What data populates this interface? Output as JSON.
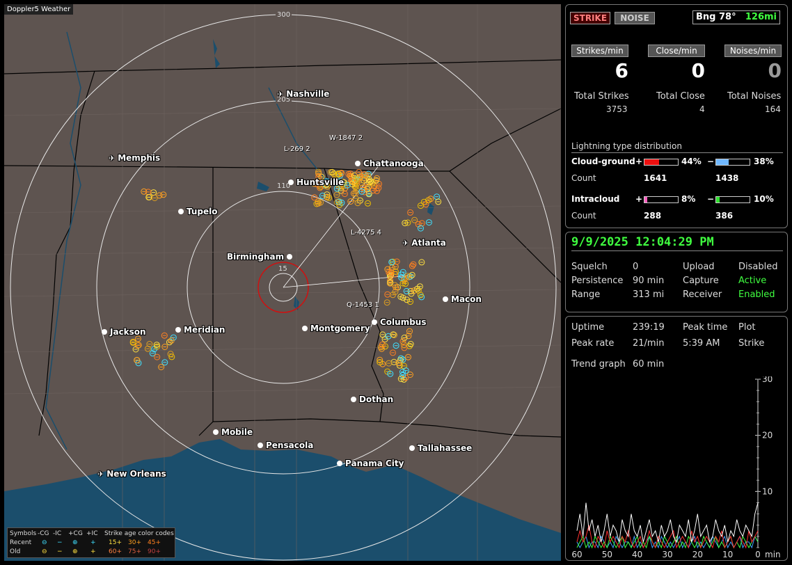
{
  "map": {
    "title": "Doppler5 Weather",
    "ring_labels": [
      "300",
      "205",
      "110",
      "15"
    ],
    "cities": [
      {
        "name": "Nashville",
        "airport": true
      },
      {
        "name": "Memphis",
        "airport": true
      },
      {
        "name": "Chattanooga",
        "airport": false
      },
      {
        "name": "Huntsville",
        "airport": false
      },
      {
        "name": "Tupelo",
        "airport": false
      },
      {
        "name": "Atlanta",
        "airport": true
      },
      {
        "name": "Birmingham",
        "airport": false
      },
      {
        "name": "Macon",
        "airport": false
      },
      {
        "name": "Jackson",
        "airport": false
      },
      {
        "name": "Meridian",
        "airport": false
      },
      {
        "name": "Montgomery",
        "airport": false
      },
      {
        "name": "Columbus",
        "airport": false
      },
      {
        "name": "Dothan",
        "airport": false
      },
      {
        "name": "Mobile",
        "airport": false
      },
      {
        "name": "Pensacola",
        "airport": false
      },
      {
        "name": "Tallahassee",
        "airport": false
      },
      {
        "name": "Panama City",
        "airport": false
      },
      {
        "name": "New Orleans",
        "airport": true
      }
    ],
    "probe_labels": [
      "W-1847  2",
      "L-269  2",
      "L-4275  4",
      "Q-1453  1"
    ]
  },
  "legend": {
    "row1": [
      "Symbols",
      "-CG",
      "-IC",
      "+CG",
      "+IC",
      "Strike age color codes"
    ],
    "row2": [
      "Recent",
      "⊖",
      "−",
      "⊕",
      "+",
      "15+",
      "30+",
      "45+"
    ],
    "row3": [
      "Old",
      "⊖",
      "−",
      "⊕",
      "+",
      "60+",
      "75+",
      "90+"
    ]
  },
  "stats": {
    "strike_btn": "STRIKE",
    "noise_btn": "NOISE",
    "bearing": "Bng 78°",
    "range": "126mi",
    "strikes_min_label": "Strikes/min",
    "close_min_label": "Close/min",
    "noises_min_label": "Noises/min",
    "strikes_min": "6",
    "close_min": "0",
    "noises_min": "0",
    "total_strikes_label": "Total Strikes",
    "total_close_label": "Total Close",
    "total_noises_label": "Total Noises",
    "total_strikes": "3753",
    "total_close": "4",
    "total_noises": "164",
    "dist_title": "Lightning type distribution",
    "cg_label": "Cloud-ground",
    "ic_label": "Intracloud",
    "count_label": "Count",
    "plus": "+",
    "minus": "−",
    "cg_pos_pct": "44%",
    "cg_neg_pct": "38%",
    "cg_pos_count": "1641",
    "cg_neg_count": "1438",
    "ic_pos_pct": "8%",
    "ic_neg_pct": "10%",
    "ic_pos_count": "288",
    "ic_neg_count": "386",
    "cg_pos_frac": 0.44,
    "cg_neg_frac": 0.38,
    "ic_pos_frac": 0.08,
    "ic_neg_frac": 0.1
  },
  "status": {
    "datetime": "9/9/2025 12:04:29 PM",
    "squelch_label": "Squelch",
    "squelch": "0",
    "persistence_label": "Persistence",
    "persistence": "90 min",
    "range_label": "Range",
    "range": "313 mi",
    "upload_label": "Upload",
    "upload": "Disabled",
    "capture_label": "Capture",
    "capture": "Active",
    "receiver_label": "Receiver",
    "receiver": "Enabled"
  },
  "trend": {
    "uptime_label": "Uptime",
    "uptime": "239:19",
    "peak_time_label": "Peak time",
    "peak_time": "5:39 AM",
    "plot_label": "Plot",
    "plot": "Strike",
    "peak_rate_label": "Peak rate",
    "peak_rate": "21/min",
    "trend_graph_label": "Trend graph",
    "trend_graph": "60 min",
    "y_ticks": [
      "30",
      "20",
      "10"
    ],
    "x_ticks": [
      "60",
      "50",
      "40",
      "30",
      "20",
      "10",
      "0"
    ],
    "x_unit": "min"
  },
  "chart_data": {
    "type": "line",
    "x": [
      60,
      59,
      58,
      57,
      56,
      55,
      54,
      53,
      52,
      51,
      50,
      49,
      48,
      47,
      46,
      45,
      44,
      43,
      42,
      41,
      40,
      39,
      38,
      37,
      36,
      35,
      34,
      33,
      32,
      31,
      30,
      29,
      28,
      27,
      26,
      25,
      24,
      23,
      22,
      21,
      20,
      19,
      18,
      17,
      16,
      15,
      14,
      13,
      12,
      11,
      10,
      9,
      8,
      7,
      6,
      5,
      4,
      3,
      2,
      1,
      0
    ],
    "series": [
      {
        "color": "#ffffff",
        "values": [
          3,
          6,
          2,
          8,
          3,
          5,
          2,
          4,
          1,
          3,
          6,
          2,
          4,
          3,
          1,
          5,
          3,
          2,
          6,
          3,
          2,
          4,
          1,
          3,
          5,
          2,
          3,
          1,
          4,
          2,
          3,
          5,
          2,
          1,
          4,
          3,
          2,
          5,
          1,
          3,
          6,
          2,
          3,
          4,
          1,
          2,
          5,
          3,
          2,
          4,
          1,
          3,
          2,
          5,
          3,
          2,
          4,
          3,
          2,
          6,
          8
        ]
      },
      {
        "color": "#ff3030",
        "values": [
          1,
          3,
          1,
          2,
          4,
          1,
          0,
          2,
          1,
          0,
          3,
          1,
          2,
          1,
          0,
          2,
          1,
          3,
          1,
          0,
          1,
          2,
          0,
          1,
          3,
          1,
          0,
          2,
          1,
          0,
          1,
          2,
          3,
          0,
          1,
          2,
          1,
          0,
          3,
          1,
          2,
          0,
          1,
          2,
          1,
          0,
          2,
          1,
          3,
          0,
          1,
          2,
          0,
          1,
          2,
          1,
          0,
          3,
          1,
          2,
          3
        ]
      },
      {
        "color": "#40ff40",
        "values": [
          0,
          1,
          2,
          0,
          1,
          0,
          2,
          1,
          0,
          1,
          0,
          2,
          1,
          0,
          1,
          2,
          0,
          1,
          0,
          1,
          2,
          0,
          1,
          0,
          2,
          1,
          0,
          1,
          0,
          2,
          1,
          0,
          1,
          2,
          0,
          1,
          0,
          2,
          1,
          0,
          1,
          0,
          2,
          1,
          0,
          1,
          2,
          0,
          1,
          0,
          1,
          2,
          0,
          1,
          0,
          2,
          1,
          0,
          1,
          2,
          1
        ]
      },
      {
        "color": "#40a0ff",
        "values": [
          1,
          0,
          1,
          2,
          0,
          1,
          1,
          0,
          2,
          1,
          0,
          1,
          0,
          2,
          1,
          0,
          1,
          1,
          0,
          2,
          0,
          1,
          0,
          1,
          2,
          0,
          1,
          0,
          2,
          1,
          0,
          1,
          0,
          1,
          2,
          0,
          1,
          0,
          1,
          2,
          0,
          1,
          0,
          1,
          0,
          2,
          1,
          0,
          1,
          2,
          0,
          1,
          0,
          1,
          2,
          0,
          1,
          1,
          0,
          2,
          1
        ]
      }
    ],
    "xlabel": "min",
    "ylim": [
      0,
      30
    ],
    "xlim": [
      60,
      0
    ]
  }
}
